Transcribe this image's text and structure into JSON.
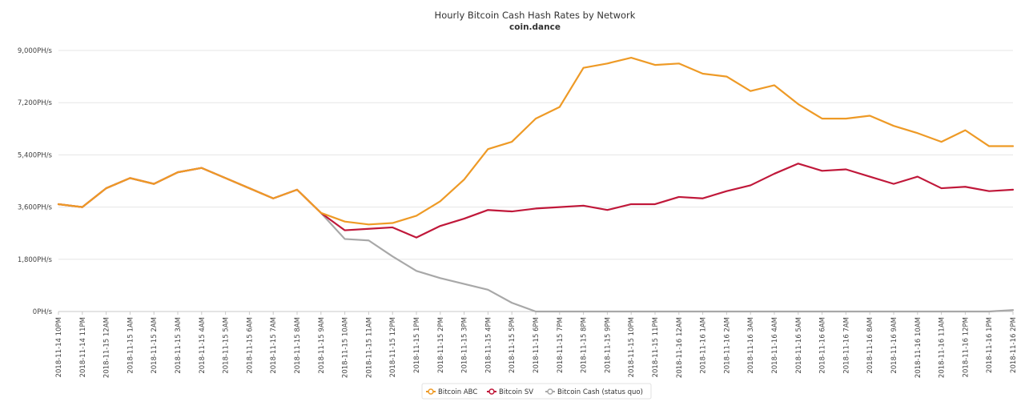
{
  "chart_data": {
    "type": "line",
    "title": "Hourly Bitcoin Cash Hash Rates by Network",
    "subtitle": "coin.dance",
    "xlabel": "",
    "ylabel": "",
    "ylim": [
      0,
      9000
    ],
    "yticks": [
      "0PH/s",
      "1,800PH/s",
      "3,600PH/s",
      "5,400PH/s",
      "7,200PH/s",
      "9,000PH/s"
    ],
    "ytick_values": [
      0,
      1800,
      3600,
      5400,
      7200,
      9000
    ],
    "grid": "horizontal",
    "legend_position": "bottom-center",
    "categories": [
      "2018-11-14 10PM",
      "2018-11-14 11PM",
      "2018-11-15 12AM",
      "2018-11-15 1AM",
      "2018-11-15 2AM",
      "2018-11-15 3AM",
      "2018-11-15 4AM",
      "2018-11-15 5AM",
      "2018-11-15 6AM",
      "2018-11-15 7AM",
      "2018-11-15 8AM",
      "2018-11-15 9AM",
      "2018-11-15 10AM",
      "2018-11-15 11AM",
      "2018-11-15 12PM",
      "2018-11-15 1PM",
      "2018-11-15 2PM",
      "2018-11-15 3PM",
      "2018-11-15 4PM",
      "2018-11-15 5PM",
      "2018-11-15 6PM",
      "2018-11-15 7PM",
      "2018-11-15 8PM",
      "2018-11-15 9PM",
      "2018-11-15 10PM",
      "2018-11-15 11PM",
      "2018-11-16 12AM",
      "2018-11-16 1AM",
      "2018-11-16 2AM",
      "2018-11-16 3AM",
      "2018-11-16 4AM",
      "2018-11-16 5AM",
      "2018-11-16 6AM",
      "2018-11-16 7AM",
      "2018-11-16 8AM",
      "2018-11-16 9AM",
      "2018-11-16 10AM",
      "2018-11-16 11AM",
      "2018-11-16 12PM",
      "2018-11-16 1PM",
      "2018-11-16 2PM"
    ],
    "series": [
      {
        "name": "Bitcoin ABC",
        "color": "#ee9a26",
        "values": [
          3700,
          3600,
          4250,
          4600,
          4400,
          4800,
          4950,
          4600,
          4250,
          3900,
          4200,
          3400,
          3100,
          3000,
          3050,
          3300,
          3800,
          4550,
          5600,
          5850,
          6650,
          7050,
          8400,
          8550,
          8750,
          8500,
          8550,
          8200,
          8100,
          7600,
          7800,
          7150,
          6650,
          6650,
          6750,
          6400,
          6150,
          5850,
          6250,
          5700,
          5700
        ]
      },
      {
        "name": "Bitcoin SV",
        "color": "#c0183a",
        "values": [
          3700,
          3600,
          4250,
          4600,
          4400,
          4800,
          4950,
          4600,
          4250,
          3900,
          4200,
          3400,
          2800,
          2850,
          2900,
          2550,
          2950,
          3200,
          3500,
          3450,
          3550,
          3600,
          3650,
          3500,
          3700,
          3700,
          3950,
          3900,
          4150,
          4350,
          4750,
          5100,
          4850,
          4900,
          4650,
          4400,
          4650,
          4250,
          4300,
          4150,
          4200
        ]
      },
      {
        "name": "Bitcoin Cash (status quo)",
        "color": "#a8a8a8",
        "values": [
          3700,
          3600,
          4250,
          4600,
          4400,
          4800,
          4950,
          4600,
          4250,
          3900,
          4200,
          3400,
          2500,
          2450,
          1900,
          1400,
          1150,
          950,
          750,
          300,
          0,
          0,
          0,
          0,
          0,
          0,
          0,
          0,
          0,
          0,
          0,
          0,
          0,
          0,
          0,
          0,
          0,
          0,
          0,
          0,
          50
        ]
      }
    ]
  }
}
